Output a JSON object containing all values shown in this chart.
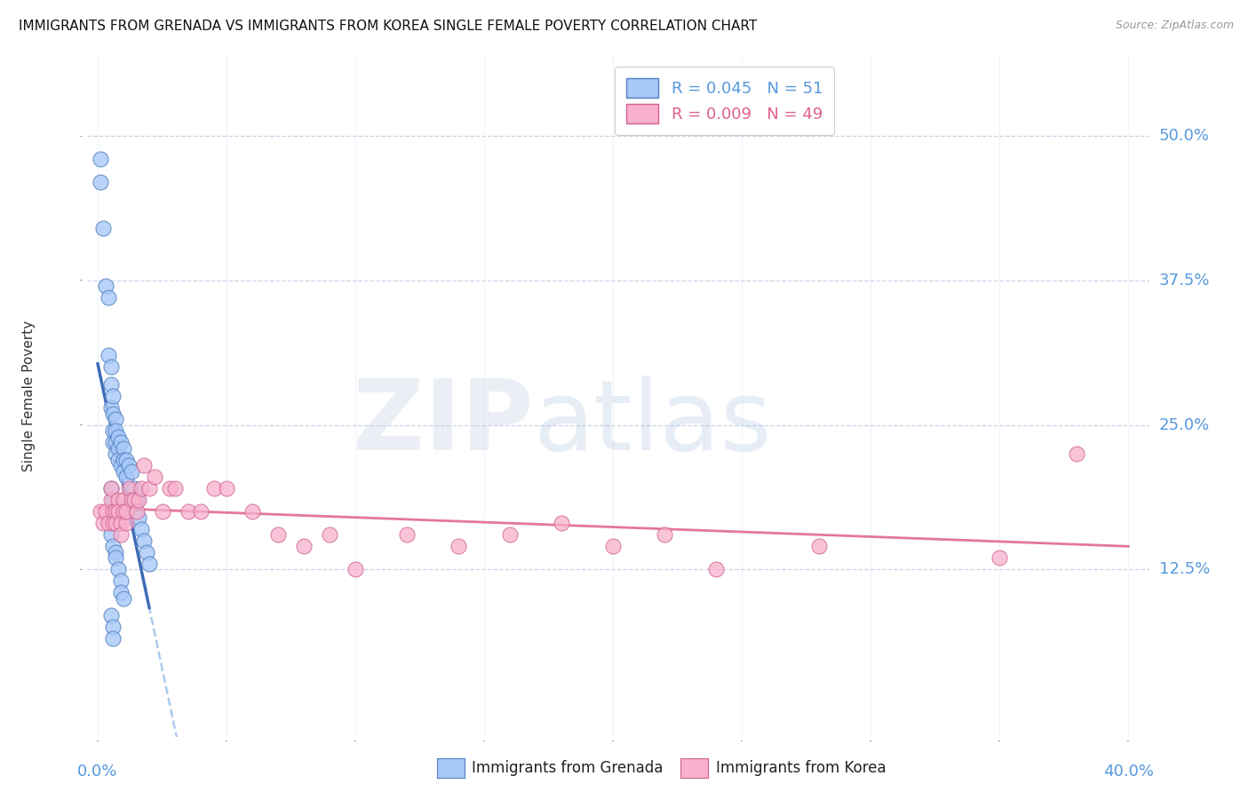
{
  "title": "IMMIGRANTS FROM GRENADA VS IMMIGRANTS FROM KOREA SINGLE FEMALE POVERTY CORRELATION CHART",
  "source": "Source: ZipAtlas.com",
  "ylabel": "Single Female Poverty",
  "ytick_labels": [
    "12.5%",
    "25.0%",
    "37.5%",
    "50.0%"
  ],
  "ytick_values": [
    0.125,
    0.25,
    0.375,
    0.5
  ],
  "xlim": [
    0.0,
    0.4
  ],
  "ylim": [
    0.0,
    0.55
  ],
  "grenada_color": "#a8c8f8",
  "grenada_edge": "#5080c0",
  "korea_color": "#f8b0cc",
  "korea_edge": "#d06090",
  "background_color": "#ffffff",
  "grid_color": "#c8d4e8",
  "title_fontsize": 11,
  "axis_color": "#5599dd",
  "watermark": "ZIPatlas",
  "grenada_x": [
    0.001,
    0.001,
    0.002,
    0.003,
    0.004,
    0.004,
    0.005,
    0.005,
    0.005,
    0.006,
    0.006,
    0.006,
    0.006,
    0.007,
    0.007,
    0.007,
    0.007,
    0.008,
    0.008,
    0.008,
    0.009,
    0.009,
    0.01,
    0.01,
    0.01,
    0.011,
    0.011,
    0.012,
    0.013,
    0.014,
    0.015,
    0.016,
    0.017,
    0.018,
    0.019,
    0.02,
    0.005,
    0.006,
    0.007,
    0.008,
    0.005,
    0.006,
    0.007,
    0.007,
    0.008,
    0.009,
    0.009,
    0.01,
    0.005,
    0.006,
    0.006
  ],
  "grenada_y": [
    0.48,
    0.46,
    0.42,
    0.37,
    0.36,
    0.31,
    0.3,
    0.285,
    0.265,
    0.275,
    0.26,
    0.245,
    0.235,
    0.255,
    0.245,
    0.235,
    0.225,
    0.24,
    0.23,
    0.22,
    0.235,
    0.215,
    0.23,
    0.22,
    0.21,
    0.22,
    0.205,
    0.215,
    0.21,
    0.195,
    0.185,
    0.17,
    0.16,
    0.15,
    0.14,
    0.13,
    0.195,
    0.185,
    0.175,
    0.165,
    0.155,
    0.145,
    0.14,
    0.135,
    0.125,
    0.115,
    0.105,
    0.1,
    0.085,
    0.075,
    0.065
  ],
  "korea_x": [
    0.001,
    0.002,
    0.003,
    0.004,
    0.005,
    0.005,
    0.006,
    0.006,
    0.007,
    0.007,
    0.008,
    0.008,
    0.009,
    0.009,
    0.01,
    0.01,
    0.011,
    0.011,
    0.012,
    0.013,
    0.014,
    0.015,
    0.016,
    0.017,
    0.018,
    0.02,
    0.022,
    0.025,
    0.028,
    0.03,
    0.035,
    0.04,
    0.045,
    0.05,
    0.06,
    0.07,
    0.08,
    0.09,
    0.1,
    0.12,
    0.14,
    0.16,
    0.18,
    0.2,
    0.22,
    0.24,
    0.28,
    0.35,
    0.38
  ],
  "korea_y": [
    0.175,
    0.165,
    0.175,
    0.165,
    0.185,
    0.195,
    0.175,
    0.165,
    0.175,
    0.165,
    0.185,
    0.175,
    0.165,
    0.155,
    0.185,
    0.175,
    0.165,
    0.175,
    0.195,
    0.185,
    0.185,
    0.175,
    0.185,
    0.195,
    0.215,
    0.195,
    0.205,
    0.175,
    0.195,
    0.195,
    0.175,
    0.175,
    0.195,
    0.195,
    0.175,
    0.155,
    0.145,
    0.155,
    0.125,
    0.155,
    0.145,
    0.155,
    0.165,
    0.145,
    0.155,
    0.125,
    0.145,
    0.135,
    0.225
  ]
}
